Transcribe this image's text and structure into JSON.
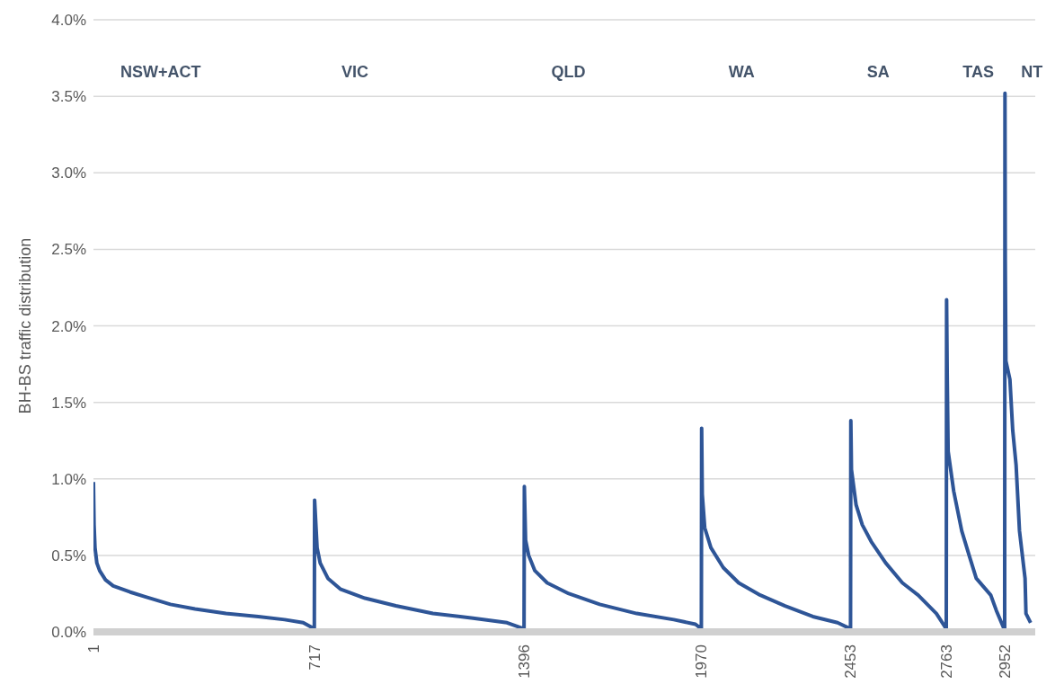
{
  "chart_data": {
    "type": "line",
    "ylabel": "BH-BS traffic distribution",
    "xlim": [
      1,
      3050
    ],
    "xticks": [
      1,
      717,
      1396,
      1970,
      2453,
      2763,
      2952
    ],
    "ylim": [
      0,
      4
    ],
    "yticks": [
      {
        "value": 0,
        "label": "0.0%"
      },
      {
        "value": 0.5,
        "label": "0.5%"
      },
      {
        "value": 1,
        "label": "1.0%"
      },
      {
        "value": 1.5,
        "label": "1.5%"
      },
      {
        "value": 2,
        "label": "2.0%"
      },
      {
        "value": 2.5,
        "label": "2.5%"
      },
      {
        "value": 3,
        "label": "3.0%"
      },
      {
        "value": 3.5,
        "label": "3.5%"
      },
      {
        "value": 4,
        "label": "4.0%"
      }
    ],
    "grid": "y",
    "marker": "none",
    "line_style": "solid",
    "series": [
      {
        "color": "#2e5597",
        "x": [
          1,
          3,
          6,
          12,
          21,
          40,
          65,
          120,
          168,
          250,
          330,
          430,
          535,
          620,
          680,
          716,
          717,
          725,
          735,
          760,
          800,
          880,
          980,
          1100,
          1230,
          1340,
          1395,
          1396,
          1400,
          1410,
          1430,
          1470,
          1540,
          1640,
          1760,
          1880,
          1950,
          1969,
          1970,
          1972,
          1980,
          2000,
          2040,
          2090,
          2160,
          2240,
          2330,
          2410,
          2452,
          2453,
          2455,
          2470,
          2490,
          2519,
          2566,
          2620,
          2671,
          2730,
          2762,
          2763,
          2765,
          2768,
          2786,
          2812,
          2836,
          2859,
          2906,
          2924,
          2951,
          2952,
          2953,
          2955,
          2968,
          2977,
          2988,
          2999,
          3017,
          3020,
          3035
        ],
        "values": [
          0.98,
          0.7,
          0.55,
          0.45,
          0.4,
          0.34,
          0.3,
          0.26,
          0.23,
          0.18,
          0.15,
          0.12,
          0.1,
          0.08,
          0.06,
          0.02,
          0.86,
          0.55,
          0.45,
          0.35,
          0.28,
          0.22,
          0.17,
          0.12,
          0.09,
          0.06,
          0.02,
          0.95,
          0.6,
          0.5,
          0.4,
          0.32,
          0.25,
          0.18,
          0.12,
          0.08,
          0.05,
          0.02,
          1.33,
          0.9,
          0.68,
          0.55,
          0.42,
          0.32,
          0.24,
          0.17,
          0.1,
          0.06,
          0.02,
          1.38,
          1.06,
          0.83,
          0.7,
          0.59,
          0.45,
          0.32,
          0.24,
          0.12,
          0.02,
          2.17,
          1.68,
          1.18,
          0.92,
          0.66,
          0.5,
          0.35,
          0.24,
          0.14,
          0.01,
          3.52,
          2.43,
          1.77,
          1.65,
          1.32,
          1.09,
          0.66,
          0.35,
          0.12,
          0.06
        ]
      }
    ],
    "annotations": [
      "NSW+ACT",
      "VIC",
      "QLD",
      "WA",
      "SA",
      "TAS",
      "NT"
    ]
  }
}
